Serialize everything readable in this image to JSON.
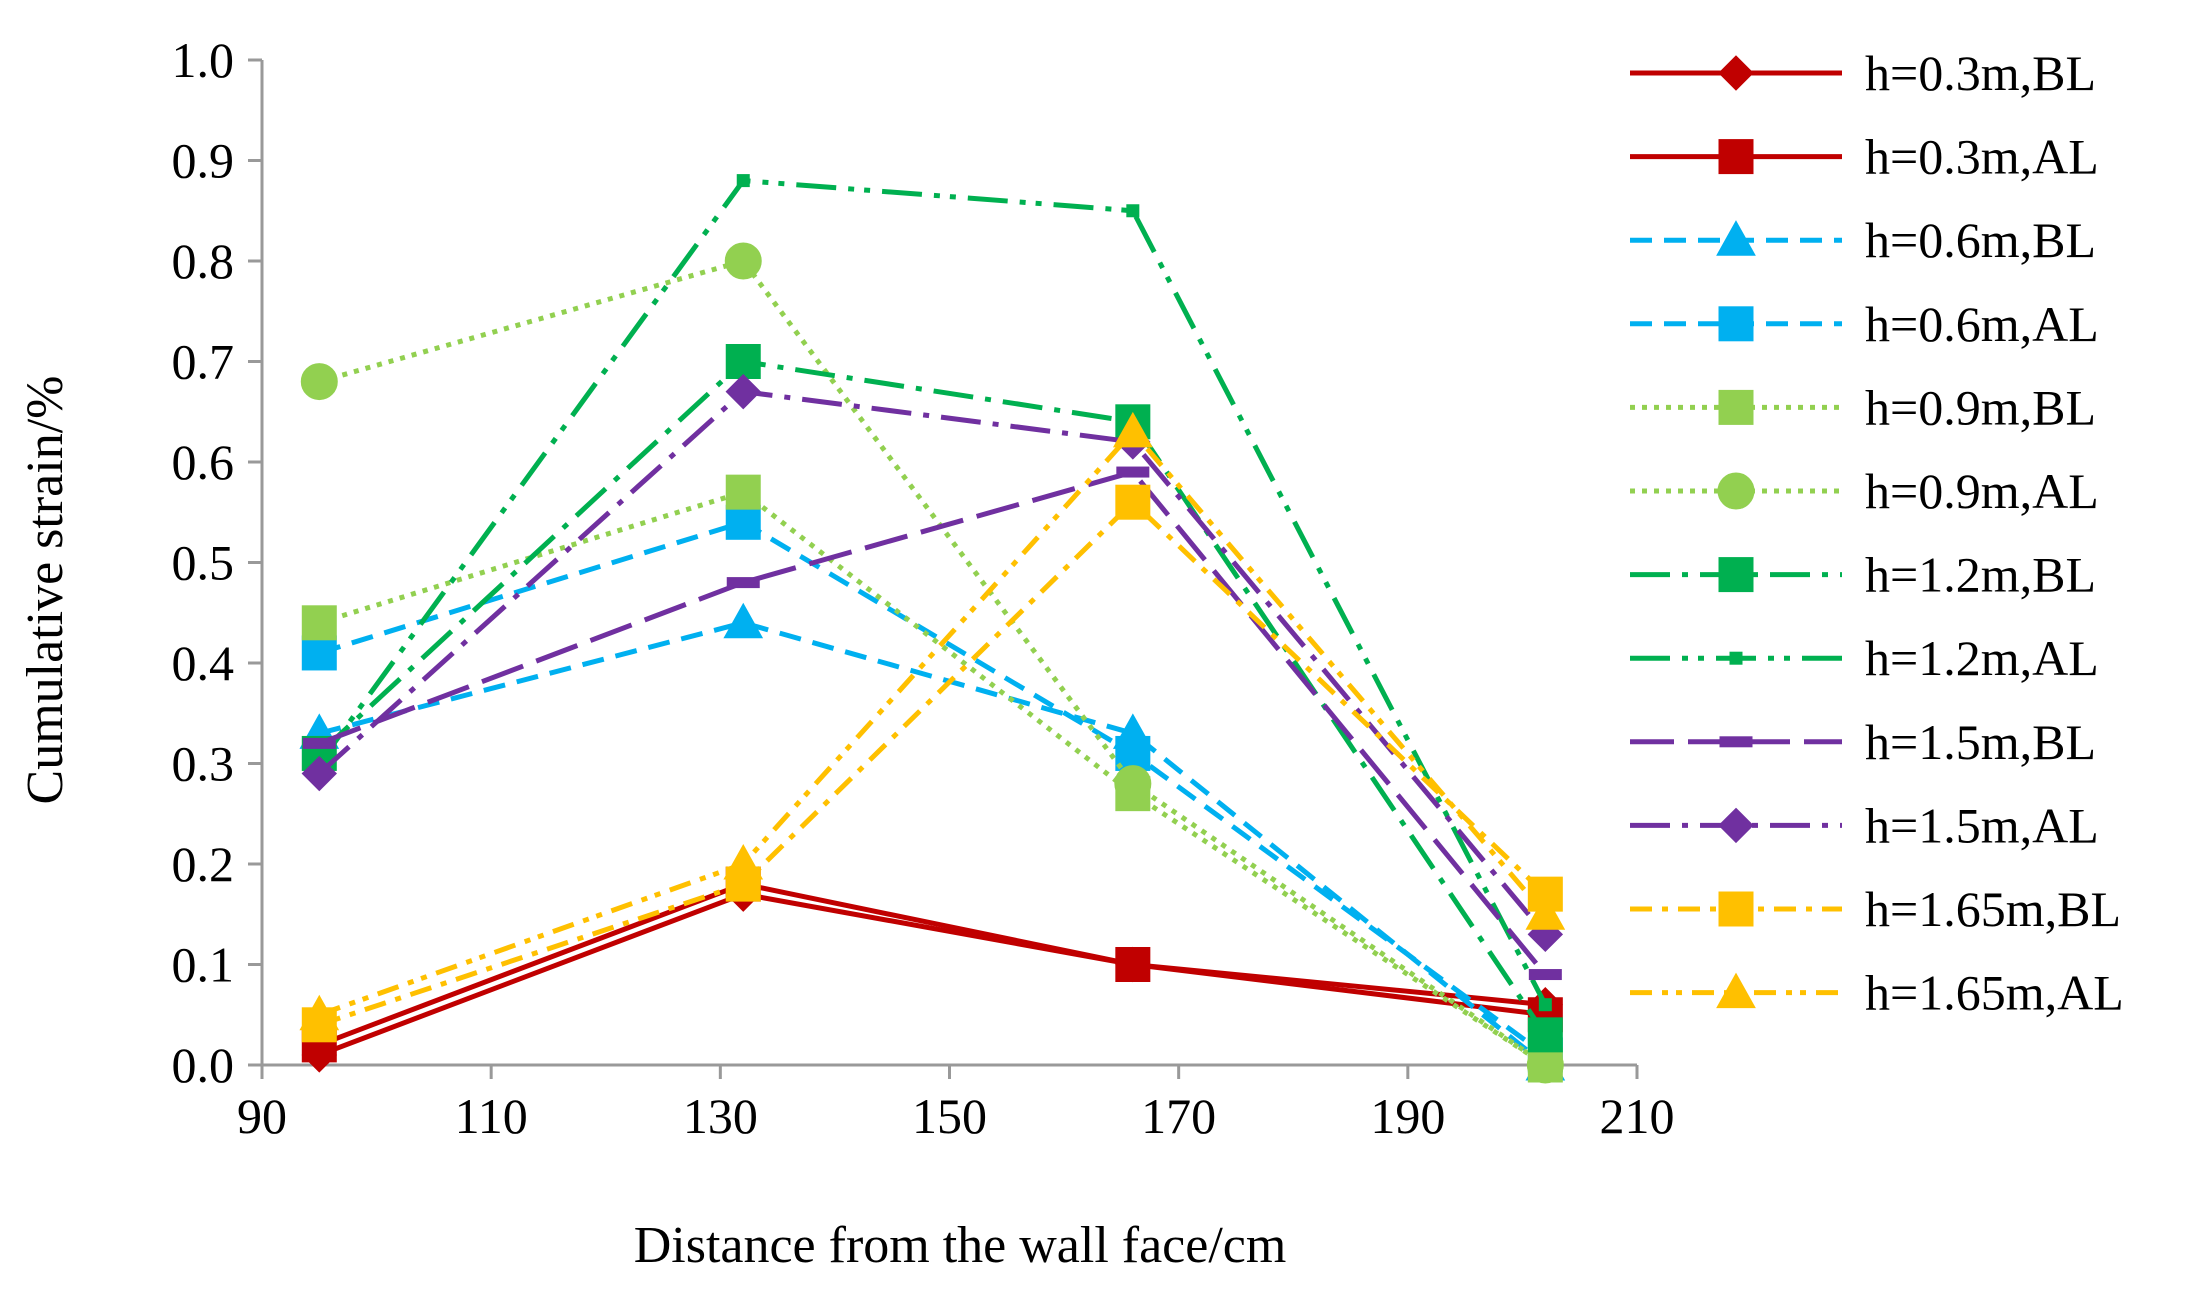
{
  "chart_data": {
    "type": "line",
    "title": "",
    "xlabel": "Distance from the wall face/cm",
    "ylabel": "Cumulative strain/%",
    "xlim": [
      90,
      210
    ],
    "ylim": [
      0.0,
      1.0
    ],
    "xticks": [
      90,
      110,
      130,
      150,
      170,
      190,
      210
    ],
    "yticks": [
      0.0,
      0.1,
      0.2,
      0.3,
      0.4,
      0.5,
      0.6,
      0.7,
      0.8,
      0.9,
      1.0
    ],
    "x": [
      95,
      132,
      166,
      202
    ],
    "grid": false,
    "legend_position": "right",
    "series": [
      {
        "name": "h=0.3m,BL",
        "values": [
          0.01,
          0.17,
          0.1,
          0.06
        ],
        "color": "#C00000",
        "dash": "solid",
        "marker": "diamond"
      },
      {
        "name": "h=0.3m,AL",
        "values": [
          0.02,
          0.18,
          0.1,
          0.05
        ],
        "color": "#C00000",
        "dash": "solid",
        "marker": "square"
      },
      {
        "name": "h=0.6m,BL",
        "values": [
          0.33,
          0.44,
          0.33,
          0.0
        ],
        "color": "#00B0F0",
        "dash": "dash",
        "marker": "triangle"
      },
      {
        "name": "h=0.6m,AL",
        "values": [
          0.41,
          0.54,
          0.31,
          0.01
        ],
        "color": "#00B0F0",
        "dash": "dash",
        "marker": "square"
      },
      {
        "name": "h=0.9m,BL",
        "values": [
          0.44,
          0.57,
          0.27,
          0.0
        ],
        "color": "#92D050",
        "dash": "dot",
        "marker": "square"
      },
      {
        "name": "h=0.9m,AL",
        "values": [
          0.68,
          0.8,
          0.28,
          0.0
        ],
        "color": "#92D050",
        "dash": "dot",
        "marker": "circle"
      },
      {
        "name": "h=1.2m,BL",
        "values": [
          0.31,
          0.7,
          0.64,
          0.03
        ],
        "color": "#00B050",
        "dash": "longdashdot",
        "marker": "square"
      },
      {
        "name": "h=1.2m,AL",
        "values": [
          0.3,
          0.88,
          0.85,
          0.06
        ],
        "color": "#00B050",
        "dash": "longdashdotdot",
        "marker": "smallsquare"
      },
      {
        "name": "h=1.5m,BL",
        "values": [
          0.32,
          0.48,
          0.59,
          0.09
        ],
        "color": "#7030A0",
        "dash": "longdash",
        "marker": "dash"
      },
      {
        "name": "h=1.5m,AL",
        "values": [
          0.29,
          0.67,
          0.62,
          0.13
        ],
        "color": "#7030A0",
        "dash": "longdashdot",
        "marker": "diamond"
      },
      {
        "name": "h=1.65m,BL",
        "values": [
          0.04,
          0.18,
          0.56,
          0.17
        ],
        "color": "#FFC000",
        "dash": "dashdot",
        "marker": "square"
      },
      {
        "name": "h=1.65m,AL",
        "values": [
          0.05,
          0.2,
          0.63,
          0.15
        ],
        "color": "#FFC000",
        "dash": "dashdotdot",
        "marker": "triangle"
      }
    ]
  }
}
